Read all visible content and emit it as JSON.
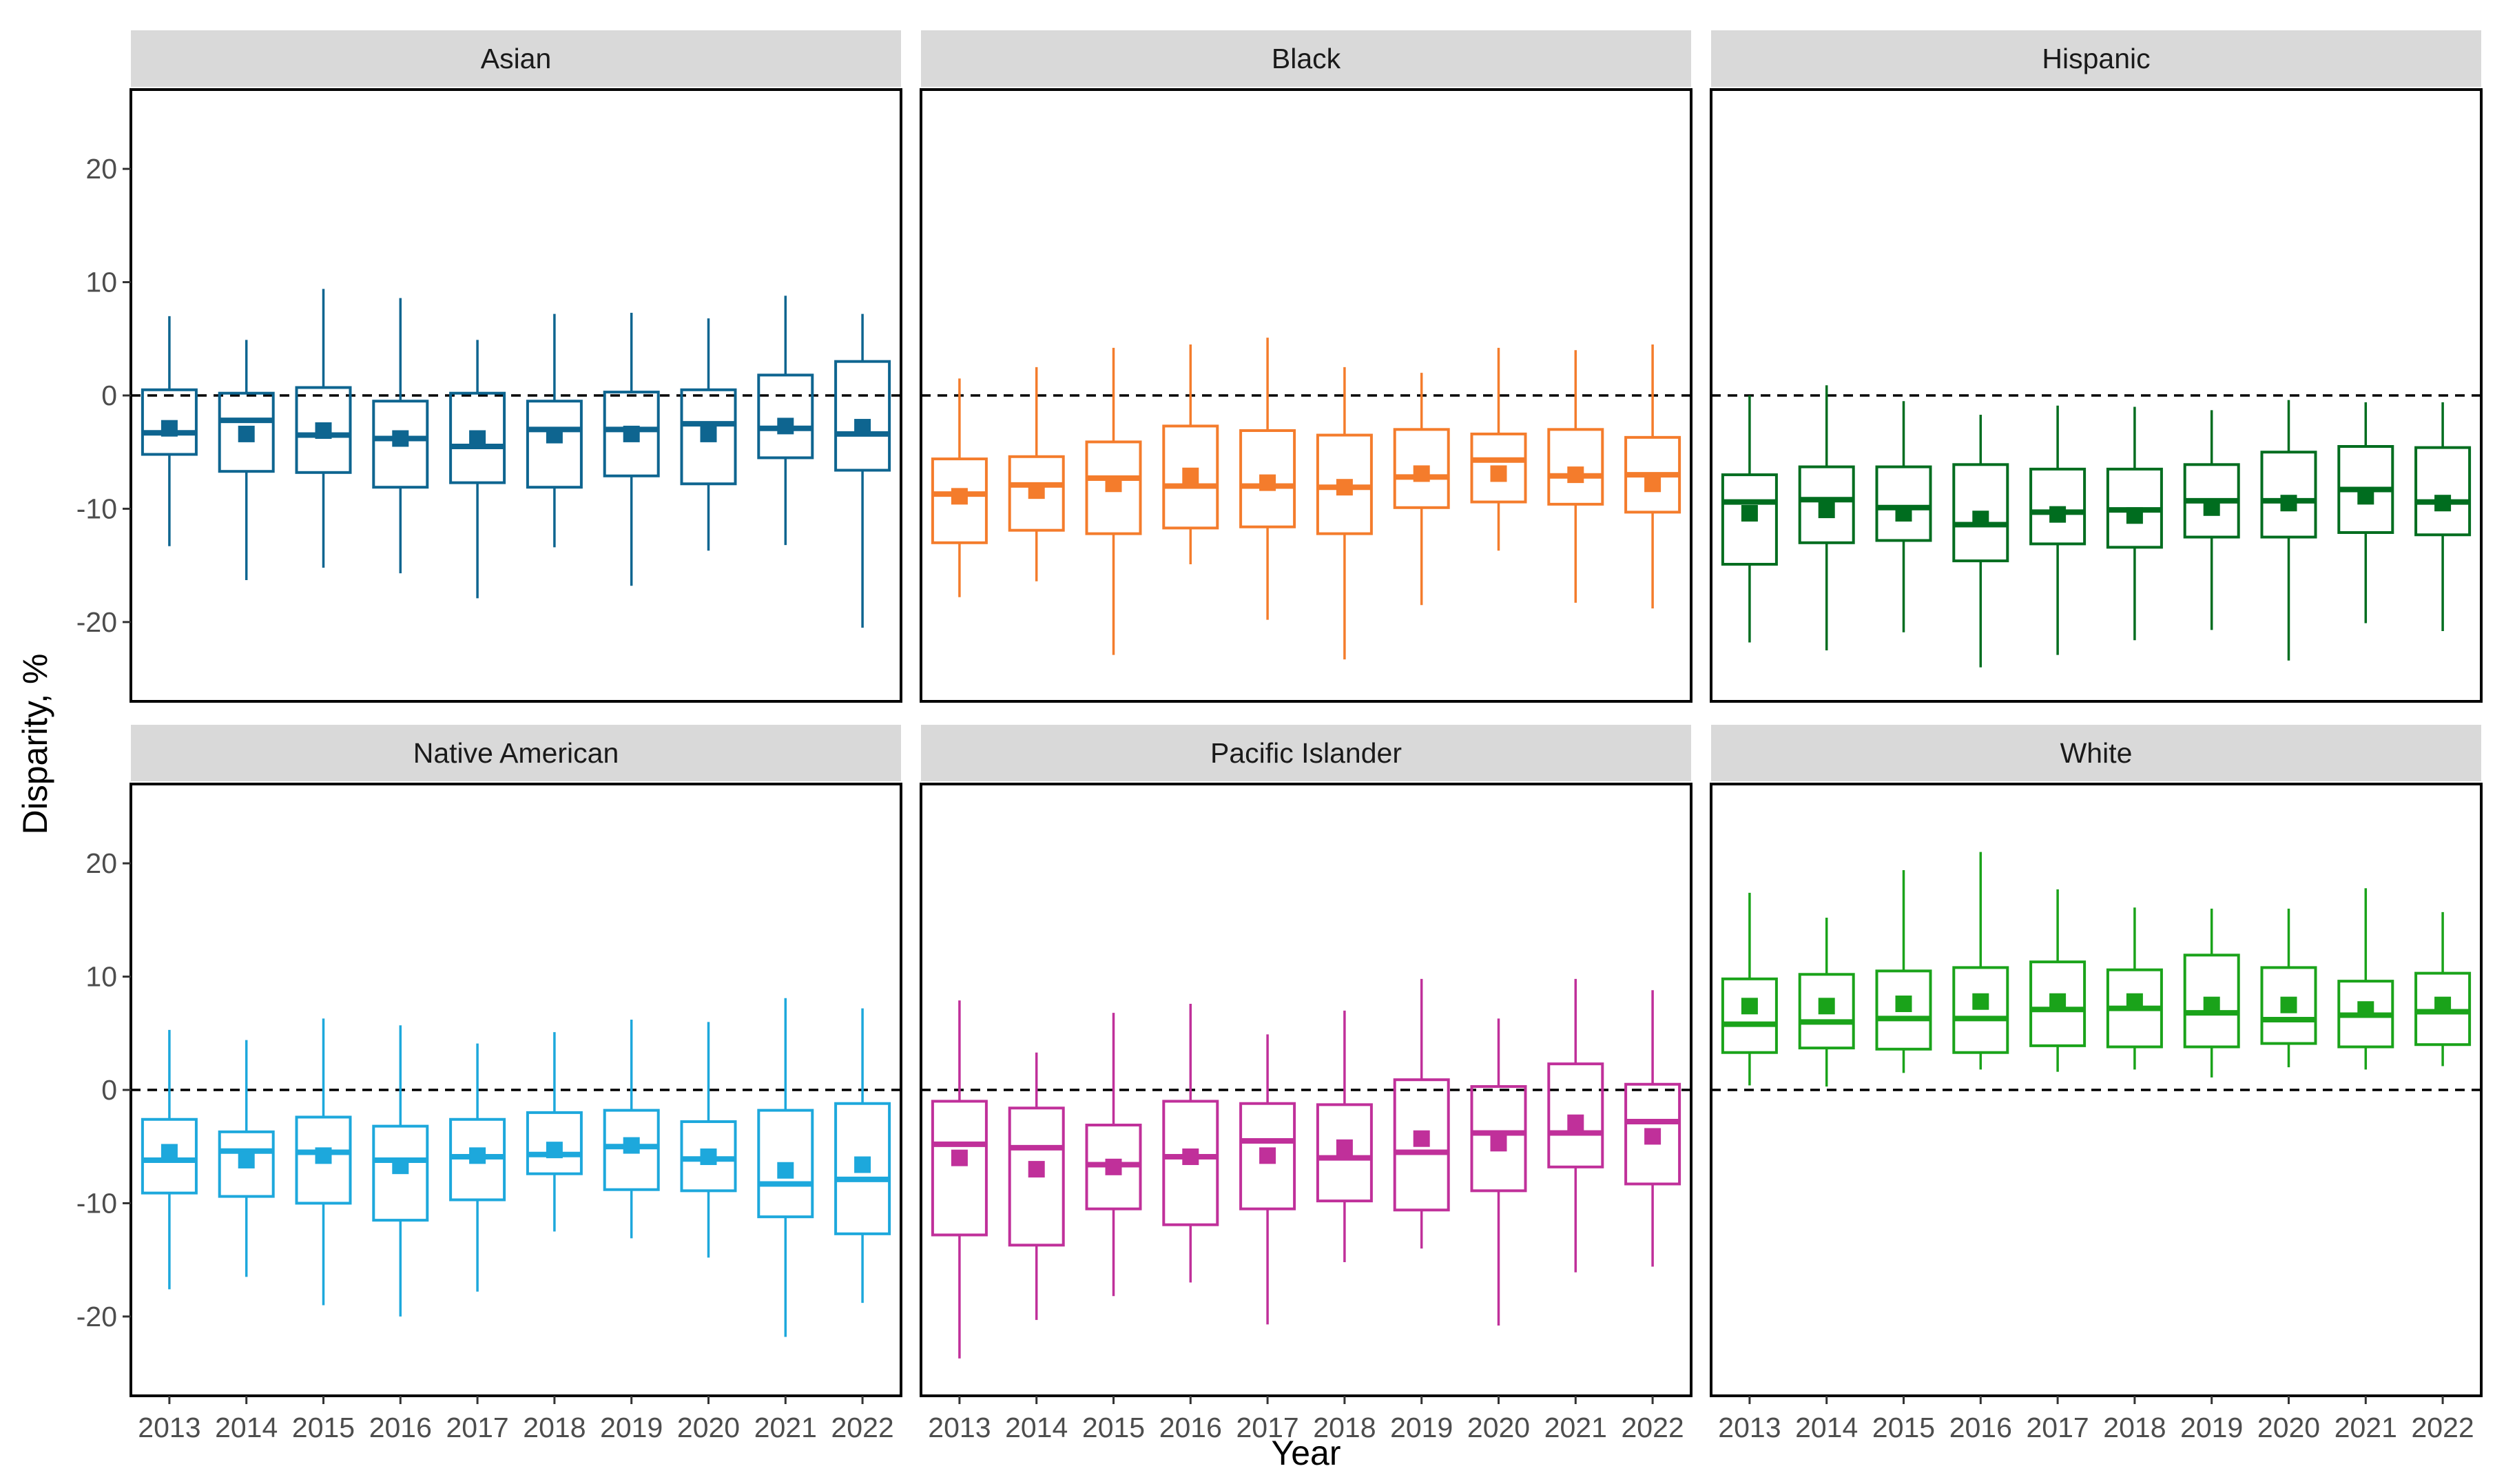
{
  "chart_data": {
    "type": "boxplot",
    "layout": "facet-grid 2x3",
    "xlabel": "Year",
    "ylabel": "Disparity, %",
    "ylim": [
      -27,
      27
    ],
    "yticks": [
      -20,
      -10,
      0,
      10,
      20
    ],
    "ytick_labels": [
      "-20",
      "-10",
      "0",
      "10",
      "20"
    ],
    "categories": [
      "2013",
      "2014",
      "2015",
      "2016",
      "2017",
      "2018",
      "2019",
      "2020",
      "2021",
      "2022"
    ],
    "reference_line": {
      "y": 0,
      "style": "dashed",
      "color": "#000000"
    },
    "marker": "square = mean",
    "grid": false,
    "panels": [
      {
        "name": "Asian",
        "color": "#0e6590",
        "boxes": [
          {
            "low": -13.3,
            "q1": -5.2,
            "median": -3.3,
            "q3": 0.5,
            "high": 7.0,
            "mean": -2.9
          },
          {
            "low": -16.3,
            "q1": -6.7,
            "median": -2.2,
            "q3": 0.2,
            "high": 4.9,
            "mean": -3.4
          },
          {
            "low": -15.2,
            "q1": -6.8,
            "median": -3.5,
            "q3": 0.7,
            "high": 9.4,
            "mean": -3.1
          },
          {
            "low": -15.7,
            "q1": -8.1,
            "median": -3.8,
            "q3": -0.5,
            "high": 8.6,
            "mean": -3.8
          },
          {
            "low": -17.9,
            "q1": -7.7,
            "median": -4.5,
            "q3": 0.2,
            "high": 4.9,
            "mean": -3.8
          },
          {
            "low": -13.4,
            "q1": -8.1,
            "median": -3.0,
            "q3": -0.5,
            "high": 7.2,
            "mean": -3.5
          },
          {
            "low": -16.8,
            "q1": -7.1,
            "median": -3.0,
            "q3": 0.3,
            "high": 7.3,
            "mean": -3.4
          },
          {
            "low": -13.7,
            "q1": -7.8,
            "median": -2.5,
            "q3": 0.5,
            "high": 6.8,
            "mean": -3.4
          },
          {
            "low": -13.2,
            "q1": -5.5,
            "median": -2.9,
            "q3": 1.8,
            "high": 8.8,
            "mean": -2.7
          },
          {
            "low": -20.5,
            "q1": -6.6,
            "median": -3.4,
            "q3": 3.0,
            "high": 7.2,
            "mean": -2.8
          }
        ]
      },
      {
        "name": "Black",
        "color": "#f47c2c",
        "boxes": [
          {
            "low": -17.8,
            "q1": -13.0,
            "median": -8.7,
            "q3": -5.6,
            "high": 1.5,
            "mean": -8.9
          },
          {
            "low": -16.4,
            "q1": -11.9,
            "median": -7.9,
            "q3": -5.4,
            "high": 2.5,
            "mean": -8.4
          },
          {
            "low": -22.9,
            "q1": -12.2,
            "median": -7.3,
            "q3": -4.1,
            "high": 4.2,
            "mean": -7.8
          },
          {
            "low": -14.9,
            "q1": -11.7,
            "median": -8.0,
            "q3": -2.7,
            "high": 4.5,
            "mean": -7.1
          },
          {
            "low": -19.8,
            "q1": -11.6,
            "median": -8.0,
            "q3": -3.1,
            "high": 5.1,
            "mean": -7.7
          },
          {
            "low": -23.3,
            "q1": -12.2,
            "median": -8.1,
            "q3": -3.5,
            "high": 2.5,
            "mean": -8.1
          },
          {
            "low": -18.5,
            "q1": -9.9,
            "median": -7.2,
            "q3": -3.0,
            "high": 2.0,
            "mean": -6.9
          },
          {
            "low": -13.7,
            "q1": -9.4,
            "median": -5.7,
            "q3": -3.4,
            "high": 4.2,
            "mean": -6.9
          },
          {
            "low": -18.3,
            "q1": -9.6,
            "median": -7.1,
            "q3": -3.0,
            "high": 4.0,
            "mean": -7.0
          },
          {
            "low": -18.8,
            "q1": -10.3,
            "median": -7.0,
            "q3": -3.7,
            "high": 4.5,
            "mean": -7.8
          }
        ]
      },
      {
        "name": "Hispanic",
        "color": "#006d1f",
        "boxes": [
          {
            "low": -21.8,
            "q1": -14.9,
            "median": -9.4,
            "q3": -7.0,
            "high": 0.0,
            "mean": -10.4
          },
          {
            "low": -22.5,
            "q1": -13.0,
            "median": -9.2,
            "q3": -6.3,
            "high": 0.9,
            "mean": -10.1
          },
          {
            "low": -20.9,
            "q1": -12.8,
            "median": -9.9,
            "q3": -6.3,
            "high": -0.5,
            "mean": -10.4
          },
          {
            "low": -24.0,
            "q1": -14.6,
            "median": -11.4,
            "q3": -6.1,
            "high": -1.7,
            "mean": -10.9
          },
          {
            "low": -22.9,
            "q1": -13.1,
            "median": -10.3,
            "q3": -6.5,
            "high": -0.9,
            "mean": -10.5
          },
          {
            "low": -21.6,
            "q1": -13.4,
            "median": -10.1,
            "q3": -6.5,
            "high": -1.0,
            "mean": -10.6
          },
          {
            "low": -20.7,
            "q1": -12.5,
            "median": -9.3,
            "q3": -6.1,
            "high": -1.3,
            "mean": -9.9
          },
          {
            "low": -23.4,
            "q1": -12.5,
            "median": -9.3,
            "q3": -5.0,
            "high": -0.4,
            "mean": -9.5
          },
          {
            "low": -20.1,
            "q1": -12.1,
            "median": -8.3,
            "q3": -4.5,
            "high": -0.6,
            "mean": -8.9
          },
          {
            "low": -20.8,
            "q1": -12.3,
            "median": -9.4,
            "q3": -4.6,
            "high": -0.6,
            "mean": -9.5
          }
        ]
      },
      {
        "name": "Native American",
        "color": "#1da8dc",
        "boxes": [
          {
            "low": -17.6,
            "q1": -9.1,
            "median": -6.2,
            "q3": -2.6,
            "high": 5.3,
            "mean": -5.5
          },
          {
            "low": -16.5,
            "q1": -9.4,
            "median": -5.4,
            "q3": -3.7,
            "high": 4.4,
            "mean": -6.2
          },
          {
            "low": -19.0,
            "q1": -10.0,
            "median": -5.5,
            "q3": -2.4,
            "high": 6.3,
            "mean": -5.8
          },
          {
            "low": -20.0,
            "q1": -11.5,
            "median": -6.2,
            "q3": -3.2,
            "high": 5.7,
            "mean": -6.7
          },
          {
            "low": -17.8,
            "q1": -9.7,
            "median": -5.9,
            "q3": -2.6,
            "high": 4.1,
            "mean": -5.8
          },
          {
            "low": -12.5,
            "q1": -7.4,
            "median": -5.7,
            "q3": -2.0,
            "high": 5.1,
            "mean": -5.3
          },
          {
            "low": -13.1,
            "q1": -8.8,
            "median": -5.0,
            "q3": -1.8,
            "high": 6.2,
            "mean": -4.9
          },
          {
            "low": -14.8,
            "q1": -8.9,
            "median": -6.1,
            "q3": -2.8,
            "high": 6.0,
            "mean": -5.9
          },
          {
            "low": -21.8,
            "q1": -11.2,
            "median": -8.3,
            "q3": -1.8,
            "high": 8.1,
            "mean": -7.1
          },
          {
            "low": -18.8,
            "q1": -12.7,
            "median": -7.9,
            "q3": -1.2,
            "high": 7.2,
            "mean": -6.6
          }
        ]
      },
      {
        "name": "Pacific Islander",
        "color": "#c0309a",
        "boxes": [
          {
            "low": -23.7,
            "q1": -12.8,
            "median": -4.8,
            "q3": -1.0,
            "high": 7.9,
            "mean": -6.0
          },
          {
            "low": -20.3,
            "q1": -13.7,
            "median": -5.1,
            "q3": -1.6,
            "high": 3.3,
            "mean": -7.0
          },
          {
            "low": -18.2,
            "q1": -10.5,
            "median": -6.6,
            "q3": -3.1,
            "high": 6.8,
            "mean": -6.8
          },
          {
            "low": -17.0,
            "q1": -11.9,
            "median": -5.9,
            "q3": -1.0,
            "high": 7.6,
            "mean": -5.9
          },
          {
            "low": -20.7,
            "q1": -10.5,
            "median": -4.5,
            "q3": -1.2,
            "high": 4.9,
            "mean": -5.8
          },
          {
            "low": -15.2,
            "q1": -9.8,
            "median": -6.0,
            "q3": -1.3,
            "high": 7.0,
            "mean": -5.1
          },
          {
            "low": -14.0,
            "q1": -10.6,
            "median": -5.5,
            "q3": 0.9,
            "high": 9.8,
            "mean": -4.3
          },
          {
            "low": -20.8,
            "q1": -8.9,
            "median": -3.8,
            "q3": 0.3,
            "high": 6.3,
            "mean": -4.7
          },
          {
            "low": -16.1,
            "q1": -6.8,
            "median": -3.8,
            "q3": 2.3,
            "high": 9.8,
            "mean": -2.9
          },
          {
            "low": -15.6,
            "q1": -8.3,
            "median": -2.8,
            "q3": 0.5,
            "high": 8.8,
            "mean": -4.1
          }
        ]
      },
      {
        "name": "White",
        "color": "#1aa31a",
        "boxes": [
          {
            "low": 0.4,
            "q1": 3.3,
            "median": 5.8,
            "q3": 9.8,
            "high": 17.4,
            "mean": 7.4
          },
          {
            "low": 0.3,
            "q1": 3.7,
            "median": 6.0,
            "q3": 10.2,
            "high": 15.2,
            "mean": 7.4
          },
          {
            "low": 1.5,
            "q1": 3.6,
            "median": 6.3,
            "q3": 10.5,
            "high": 19.4,
            "mean": 7.6
          },
          {
            "low": 1.8,
            "q1": 3.3,
            "median": 6.3,
            "q3": 10.8,
            "high": 21.0,
            "mean": 7.8
          },
          {
            "low": 1.6,
            "q1": 3.9,
            "median": 7.1,
            "q3": 11.3,
            "high": 17.7,
            "mean": 7.8
          },
          {
            "low": 1.8,
            "q1": 3.8,
            "median": 7.2,
            "q3": 10.6,
            "high": 16.1,
            "mean": 7.8
          },
          {
            "low": 1.1,
            "q1": 3.8,
            "median": 6.8,
            "q3": 11.9,
            "high": 16.0,
            "mean": 7.5
          },
          {
            "low": 2.0,
            "q1": 4.1,
            "median": 6.2,
            "q3": 10.8,
            "high": 16.0,
            "mean": 7.5
          },
          {
            "low": 1.8,
            "q1": 3.8,
            "median": 6.6,
            "q3": 9.6,
            "high": 17.8,
            "mean": 7.1
          },
          {
            "low": 2.1,
            "q1": 4.0,
            "median": 6.9,
            "q3": 10.3,
            "high": 15.7,
            "mean": 7.5
          }
        ]
      }
    ]
  }
}
